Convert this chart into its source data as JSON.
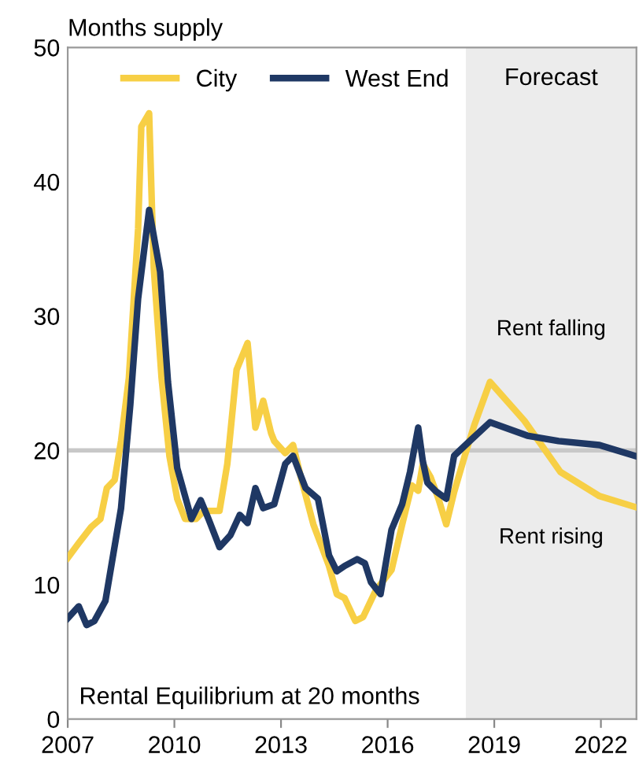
{
  "chart_data": {
    "type": "line",
    "ylabel": "Months supply",
    "series": [
      {
        "name": "City",
        "color": "#f7cf45",
        "x": [
          2007.0,
          2007.31,
          2007.66,
          2007.92,
          2008.1,
          2008.32,
          2008.5,
          2008.72,
          2008.98,
          2009.07,
          2009.29,
          2009.42,
          2009.64,
          2009.86,
          2010.08,
          2010.3,
          2010.61,
          2010.83,
          2011.27,
          2011.49,
          2011.75,
          2012.06,
          2012.28,
          2012.5,
          2012.72,
          2012.81,
          2013.12,
          2013.34,
          2013.56,
          2013.91,
          2014.35,
          2014.57,
          2014.79,
          2015.09,
          2015.31,
          2015.67,
          2016.11,
          2016.41,
          2016.68,
          2016.86,
          2016.99,
          2017.21,
          2017.43,
          2017.65,
          2017.87,
          2018.17,
          2018.44,
          2018.88,
          2019.85,
          2020.86,
          2021.96,
          2022.95
        ],
        "values": [
          12.0,
          13.1,
          14.3,
          14.9,
          17.2,
          17.8,
          20.7,
          25.4,
          36.5,
          44.1,
          45.1,
          33.6,
          25.4,
          19.6,
          16.4,
          14.9,
          14.9,
          15.5,
          15.5,
          19.0,
          26.0,
          28.0,
          21.7,
          23.7,
          21.3,
          20.7,
          19.8,
          20.4,
          18.0,
          14.5,
          11.4,
          9.3,
          9.0,
          7.3,
          7.6,
          9.6,
          11.1,
          14.5,
          17.4,
          17.0,
          19.0,
          18.0,
          16.4,
          14.5,
          16.9,
          19.6,
          21.9,
          25.1,
          22.2,
          18.4,
          16.6,
          15.8
        ]
      },
      {
        "name": "West End",
        "color": "#1f3864",
        "x": [
          2007.0,
          2007.31,
          2007.53,
          2007.75,
          2008.06,
          2008.5,
          2008.76,
          2008.98,
          2009.29,
          2009.6,
          2009.82,
          2010.08,
          2010.48,
          2010.74,
          2010.96,
          2011.27,
          2011.58,
          2011.84,
          2012.06,
          2012.28,
          2012.5,
          2012.81,
          2013.12,
          2013.34,
          2013.69,
          2014.04,
          2014.35,
          2014.57,
          2014.79,
          2015.14,
          2015.36,
          2015.53,
          2015.8,
          2016.11,
          2016.41,
          2016.63,
          2016.86,
          2016.99,
          2017.12,
          2017.34,
          2017.65,
          2017.87,
          2018.31,
          2018.88,
          2019.93,
          2020.81,
          2021.96,
          2022.95
        ],
        "values": [
          7.5,
          8.4,
          7.0,
          7.3,
          8.8,
          15.7,
          23.4,
          31.3,
          37.9,
          33.3,
          25.1,
          18.7,
          14.9,
          16.3,
          14.9,
          12.8,
          13.7,
          15.2,
          14.6,
          17.2,
          15.7,
          16.0,
          19.0,
          19.6,
          17.2,
          16.4,
          12.2,
          11.0,
          11.4,
          11.9,
          11.6,
          10.2,
          9.3,
          14.1,
          16.0,
          18.4,
          21.7,
          19.2,
          17.6,
          17.0,
          16.4,
          19.6,
          20.7,
          22.1,
          21.1,
          20.7,
          20.4,
          19.6
        ]
      }
    ],
    "xlim": [
      2007,
      2023
    ],
    "xticks": [
      2007,
      2010,
      2013,
      2016,
      2019,
      2022
    ],
    "ylim": [
      0,
      50
    ],
    "yticks": [
      0,
      10,
      20,
      30,
      40,
      50
    ],
    "ref_lines": [
      {
        "axis": "y",
        "value": 20,
        "color": "#c8c8c8"
      }
    ],
    "bands": [
      {
        "axis": "x",
        "from": 2018.2,
        "to": 2023,
        "label": "Forecast",
        "color": "#ececec"
      }
    ],
    "annotations": [
      "Rent falling",
      "Rent rising",
      "Rental Equilibrium at 20 months"
    ],
    "legend": "top left",
    "grid": false
  }
}
